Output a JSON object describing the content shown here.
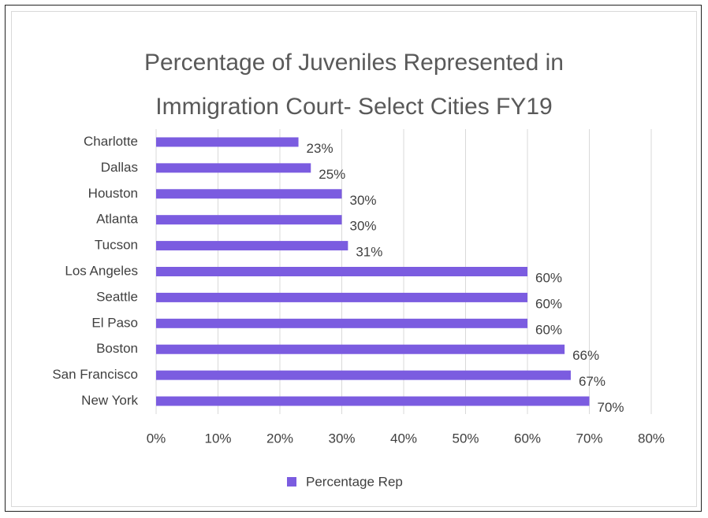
{
  "chart_data": {
    "type": "bar",
    "orientation": "horizontal",
    "title": "Percentage of Juveniles Represented in Immigration Court- Select Cities FY19",
    "categories": [
      "Charlotte",
      "Dallas",
      "Houston",
      "Atlanta",
      "Tucson",
      "Los Angeles",
      "Seattle",
      "El Paso",
      "Boston",
      "San Francisco",
      "New York"
    ],
    "series": [
      {
        "name": "Percentage Rep",
        "color": "#7b5ce0",
        "values": [
          23,
          25,
          30,
          30,
          31,
          60,
          60,
          60,
          66,
          67,
          70
        ],
        "value_labels": [
          "23%",
          "25%",
          "30%",
          "30%",
          "31%",
          "60%",
          "60%",
          "60%",
          "66%",
          "67%",
          "70%"
        ]
      }
    ],
    "xlim": [
      0,
      80
    ],
    "xticks": [
      {
        "value": 0,
        "label": "0%"
      },
      {
        "value": 10,
        "label": "10%"
      },
      {
        "value": 20,
        "label": "20%"
      },
      {
        "value": 30,
        "label": "30%"
      },
      {
        "value": 40,
        "label": "40%"
      },
      {
        "value": 50,
        "label": "50%"
      },
      {
        "value": 60,
        "label": "60%"
      },
      {
        "value": 70,
        "label": "70%"
      },
      {
        "value": 80,
        "label": "80%"
      }
    ],
    "grid": true,
    "legend": "bottom"
  }
}
